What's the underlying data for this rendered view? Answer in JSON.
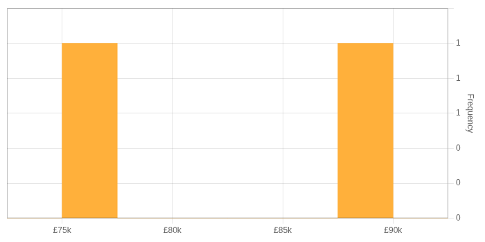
{
  "chart_data": {
    "type": "histogram",
    "bins": [
      72500,
      75000,
      77500,
      80000,
      82500,
      85000,
      87500,
      90000,
      92500
    ],
    "values": [
      0,
      1,
      0,
      0,
      0,
      0,
      1,
      0
    ],
    "color": "#FFB03B",
    "y_label": "Frequency",
    "xlim": [
      72500,
      92500
    ],
    "xticks": [
      {
        "value": 75000,
        "label": "£75k"
      },
      {
        "value": 80000,
        "label": "£80k"
      },
      {
        "value": 85000,
        "label": "£85k"
      },
      {
        "value": 90000,
        "label": "£90k"
      }
    ],
    "ylim": [
      0,
      1.2
    ],
    "yticks": [
      0,
      {
        "value": 0.2,
        "label": "0"
      },
      {
        "value": 0.4,
        "label": "0"
      },
      {
        "value": 0.6,
        "label": "1"
      },
      {
        "value": 0.8,
        "label": "1"
      },
      1,
      {
        "value": 1.2,
        "label": ""
      }
    ],
    "grid": true
  }
}
